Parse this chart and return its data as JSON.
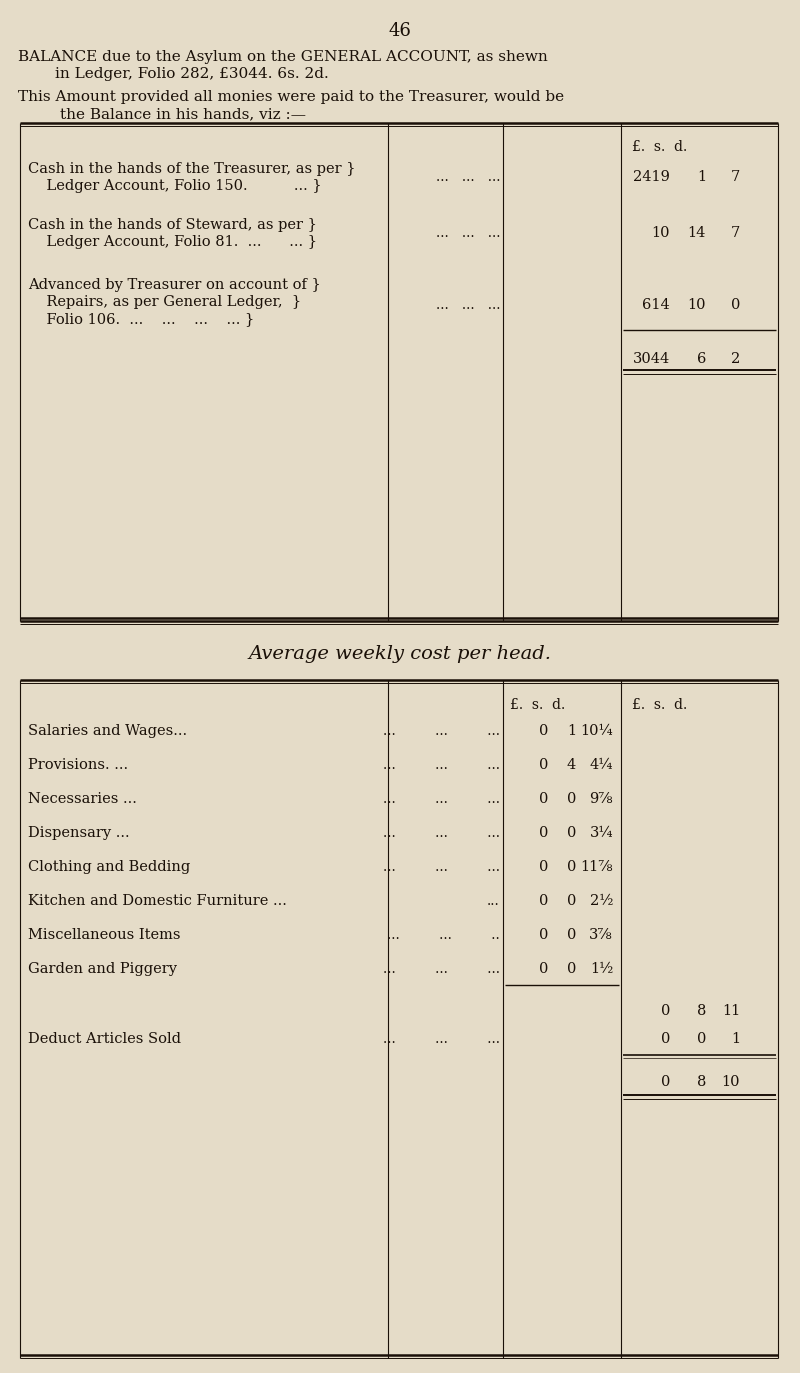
{
  "bg_color": "#e5dcc8",
  "text_color": "#1a1008",
  "page_number": "46",
  "header_line1": "BALANCE due to the Asylum on the GENERAL ACCOUNT, as shewn",
  "header_line2": "in Ledger, Folio 282, £3044. 6s. 2d.",
  "header_line3": "This Amount provided all monies were paid to the Treasurer, would be",
  "header_line4": "the Balance in his hands, viz :—",
  "avg_title": "Average weekly cost per head.",
  "avg_rows": [
    {
      "label": "Salaries and Wages...",
      "dots": "...         ...         ...",
      "p": "0",
      "s": "1",
      "d": "10¼"
    },
    {
      "label": "Provisions. ...",
      "dots": "...         ...         ...",
      "p": "0",
      "s": "4",
      "d": "4¼"
    },
    {
      "label": "Necessaries ...",
      "dots": "...         ...         ...",
      "p": "0",
      "s": "0",
      "d": "9⅞"
    },
    {
      "label": "Dispensary ...",
      "dots": "...         ...         ...",
      "p": "0",
      "s": "0",
      "d": "3¼"
    },
    {
      "label": "Clothing and Bedding",
      "dots": "...         ...         ...",
      "p": "0",
      "s": "0",
      "d": "11⅞"
    },
    {
      "label": "Kitchen and Domestic Furniture ...",
      "dots": "...",
      "p": "0",
      "s": "0",
      "d": "2½"
    },
    {
      "label": "Miscellaneous Items",
      "dots": "...         ...         ..",
      "p": "0",
      "s": "0",
      "d": "3⅞"
    },
    {
      "label": "Garden and Piggery",
      "dots": "...         ...         ...",
      "p": "0",
      "s": "0",
      "d": "1½"
    }
  ]
}
